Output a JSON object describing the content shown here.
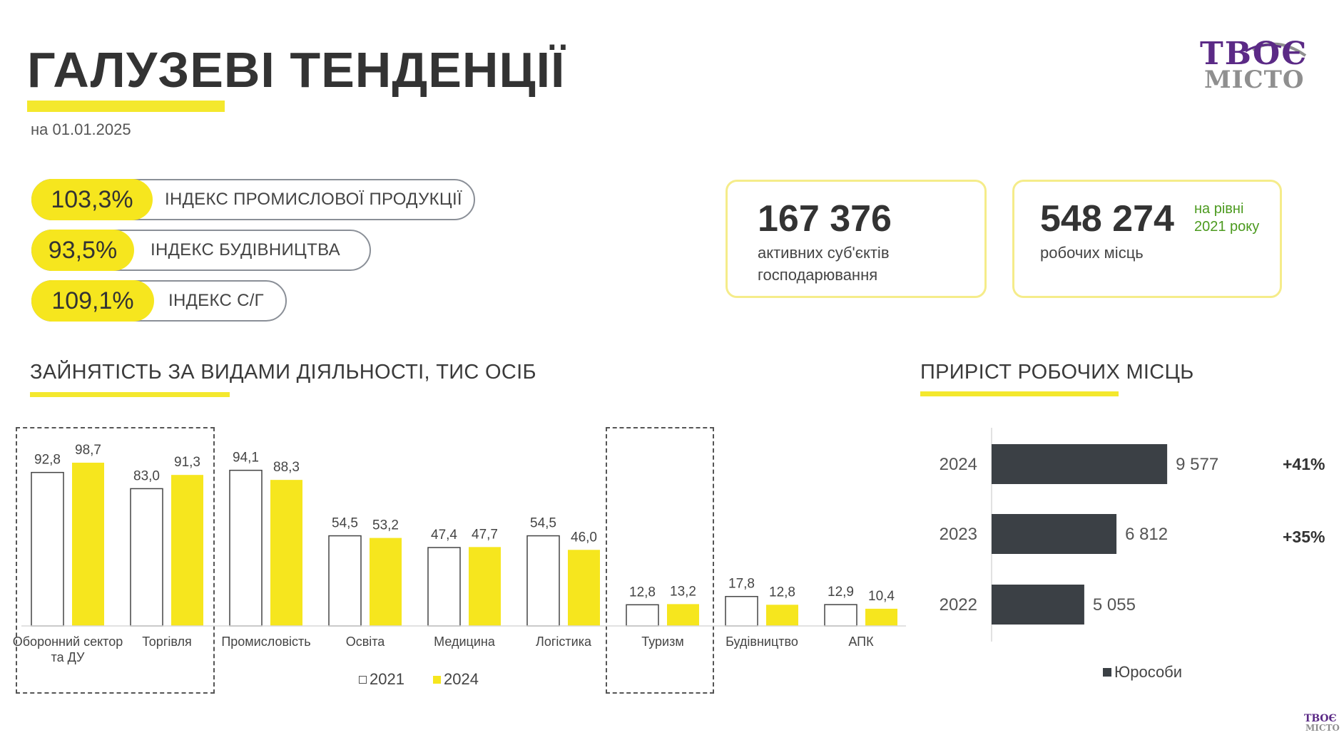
{
  "header": {
    "title": "ГАЛУЗЕВІ ТЕНДЕНЦІЇ",
    "date": "на 01.01.2025"
  },
  "logo": {
    "line1": "ТВОЄ",
    "line2": "МІСТО"
  },
  "indices": [
    {
      "value": "103,3%",
      "label": "ІНДЕКС ПРОМИСЛОВОЇ ПРОДУКЦІЇ"
    },
    {
      "value": "93,5%",
      "label": "ІНДЕКС БУДІВНИЦТВА"
    },
    {
      "value": "109,1%",
      "label": "ІНДЕКС С/Г"
    }
  ],
  "stats": [
    {
      "value": "167 376",
      "line1": "активних суб'єктів",
      "line2": "господарювання"
    },
    {
      "value": "548 274",
      "line1": "робочих місць",
      "note1": "на рівні",
      "note2": "2021 року"
    }
  ],
  "colors": {
    "accent": "#f6e61e",
    "dark_bar": "#3b4045",
    "note_green": "#4c9a1f"
  },
  "chart_data": [
    {
      "type": "bar",
      "title": "ЗАЙНЯТІСТЬ ЗА ВИДАМИ ДІЯЛЬНОСТІ, ТИС ОСІБ",
      "categories": [
        "Оборонний сектор та ДУ",
        "Торгівля",
        "Промисловість",
        "Освіта",
        "Медицина",
        "Логістика",
        "Туризм",
        "Будівництво",
        "АПК"
      ],
      "series": [
        {
          "name": "2021",
          "values": [
            92.8,
            83.0,
            94.1,
            54.5,
            47.4,
            54.5,
            12.8,
            17.8,
            12.9
          ],
          "labels": [
            "92,8",
            "83,0",
            "94,1",
            "54,5",
            "47,4",
            "54,5",
            "12,8",
            "17,8",
            "12,9"
          ]
        },
        {
          "name": "2024",
          "values": [
            98.7,
            91.3,
            88.3,
            53.2,
            47.7,
            46.0,
            13.2,
            12.8,
            10.4
          ],
          "labels": [
            "98,7",
            "91,3",
            "88,3",
            "53,2",
            "47,7",
            "46,0",
            "13,2",
            "12,8",
            "10,4"
          ]
        }
      ],
      "legend": "bottom",
      "highlighted_groups": [
        [
          "Оборонний сектор та ДУ",
          "Торгівля"
        ],
        [
          "Туризм"
        ]
      ],
      "grid": false
    },
    {
      "type": "bar",
      "orientation": "horizontal",
      "title": "ПРИРІСТ РОБОЧИХ МІСЦЬ",
      "categories": [
        "2024",
        "2023",
        "2022"
      ],
      "series": [
        {
          "name": "Юрособи",
          "values": [
            9577,
            6812,
            5055
          ],
          "labels": [
            "9 577",
            "6 812",
            "5 055"
          ]
        }
      ],
      "growth_labels": [
        "+41%",
        "+35%",
        ""
      ],
      "legend": "bottom",
      "grid": false
    }
  ]
}
